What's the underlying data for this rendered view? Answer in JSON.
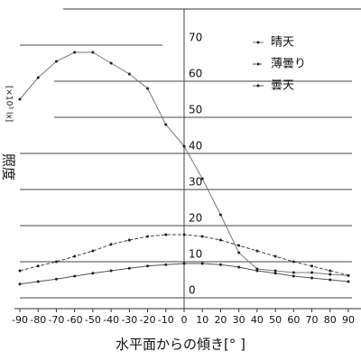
{
  "chart_data": {
    "type": "line",
    "y_label": "照度",
    "y_unit": "[×10³ lx]",
    "x_label": "水平面からの傾き[° ]",
    "x": [
      -90,
      -80,
      -70,
      -60,
      -50,
      -40,
      -30,
      -20,
      -10,
      0,
      10,
      20,
      30,
      40,
      50,
      60,
      70,
      80,
      90
    ],
    "xlim": [
      -90,
      90
    ],
    "xticks": [
      -90,
      -80,
      -70,
      -60,
      -50,
      -40,
      -30,
      -20,
      -10,
      0,
      10,
      20,
      30,
      40,
      50,
      60,
      70,
      80,
      90
    ],
    "ylim": [
      -3,
      80
    ],
    "yticks": [
      0,
      10,
      20,
      30,
      40,
      50,
      60,
      70
    ],
    "grid": true,
    "legend": "upper right",
    "series": [
      {
        "name": "晴天",
        "color": "#777777",
        "dash": "none",
        "values": [
          55,
          61,
          65.5,
          68,
          68,
          65,
          62,
          58,
          48,
          42,
          33,
          23,
          12.5,
          8,
          7.5,
          7,
          7,
          6.5,
          6.2
        ]
      },
      {
        "name": "薄曇り",
        "color": "#444444",
        "dash": "4 2",
        "values": [
          7.5,
          8.8,
          10,
          11.5,
          13,
          14.8,
          16,
          17,
          17.5,
          17.5,
          17,
          16,
          14.5,
          13,
          11.5,
          10,
          8.8,
          7.5,
          6.2
        ]
      },
      {
        "name": "曇天",
        "color": "#555555",
        "dash": "none",
        "values": [
          3.8,
          4.5,
          5.2,
          6,
          6.8,
          7.5,
          8.2,
          8.8,
          9.2,
          9.5,
          9.5,
          9.2,
          8.5,
          7.5,
          6.8,
          6,
          5.5,
          5,
          4.5
        ]
      }
    ]
  }
}
